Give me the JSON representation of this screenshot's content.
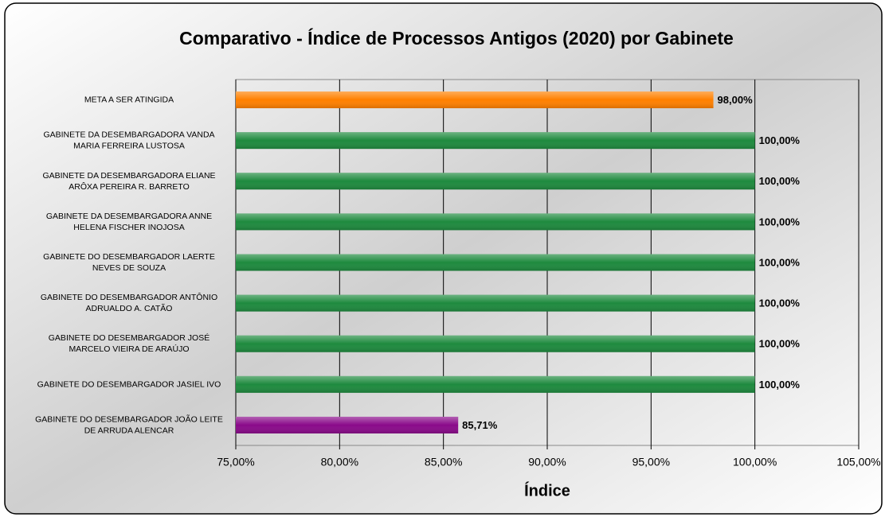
{
  "chart_data": {
    "type": "barh",
    "title": "Comparativo - Índice de Processos Antigos (2020) por Gabinete",
    "x_label": "Índice",
    "categories": [
      "META A SER ATINGIDA",
      "GABINETE DA DESEMBARGADORA VANDA MARIA FERREIRA LUSTOSA",
      "GABINETE DA DESEMBARGADORA ELIANE ARÔXA PEREIRA R. BARRETO",
      "GABINETE DA DESEMBARGADORA ANNE HELENA FISCHER INOJOSA",
      "GABINETE DO DESEMBARGADOR LAERTE NEVES DE SOUZA",
      "GABINETE DO DESEMBARGADOR ANTÔNIO ADRUALDO A. CATÃO",
      "GABINETE DO DESEMBARGADOR JOSÉ MARCELO VIEIRA DE ARAÚJO",
      "GABINETE DO DESEMBARGADOR JASIEL IVO",
      "GABINETE DO DESEMBARGADOR JOÃO LEITE DE ARRUDA ALENCAR"
    ],
    "values": [
      98,
      100,
      100,
      100,
      100,
      100,
      100,
      100,
      85.71
    ],
    "value_labels": [
      "98,00%",
      "100,00%",
      "100,00%",
      "100,00%",
      "100,00%",
      "100,00%",
      "100,00%",
      "100,00%",
      "85,71%"
    ],
    "colors": [
      "#ff8000",
      "#1e8a3e",
      "#1e8a3e",
      "#1e8a3e",
      "#1e8a3e",
      "#1e8a3e",
      "#1e8a3e",
      "#1e8a3e",
      "#8a0a8a"
    ],
    "xlim": [
      75,
      105
    ],
    "xticks": [
      {
        "value": 75,
        "label": "75,00%"
      },
      {
        "value": 80,
        "label": "80,00%"
      },
      {
        "value": 85,
        "label": "85,00%"
      },
      {
        "value": 90,
        "label": "90,00%"
      },
      {
        "value": 95,
        "label": "95,00%"
      },
      {
        "value": 100,
        "label": "100,00%"
      },
      {
        "value": 105,
        "label": "105,00%"
      }
    ],
    "grid": true
  }
}
